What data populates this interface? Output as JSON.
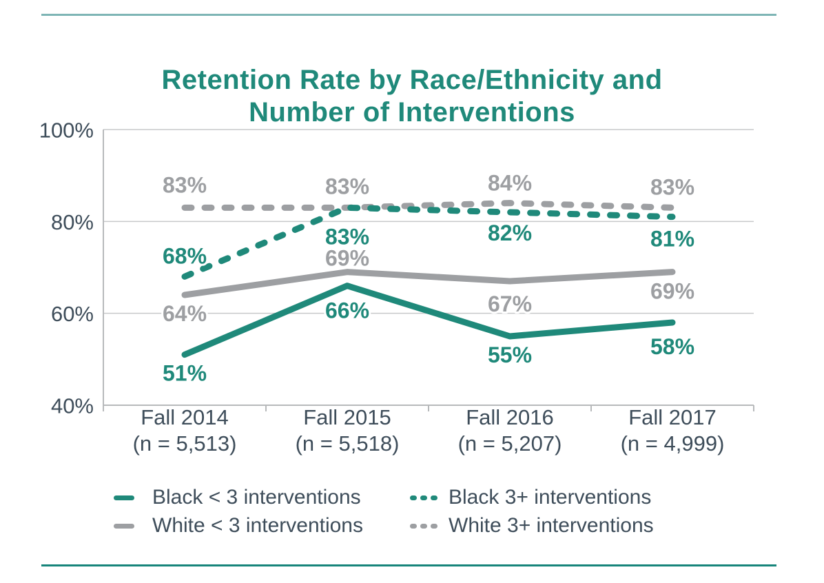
{
  "page": {
    "title_lines": [
      "Retention Rate by Race/Ethnicity and",
      "Number of Interventions"
    ]
  },
  "colors": {
    "teal": "#1F897A",
    "gray": "#9D9FA2",
    "axis_text": "#3E4D5A",
    "gridline": "#C7C9CA",
    "axis_line": "#B7B9BB",
    "title": "#1F897A",
    "top_rule": "#7EB5B5",
    "bottom_rule": "#17857B"
  },
  "chart_data": {
    "type": "line",
    "title": "Retention Rate by Race/Ethnicity and Number of Interventions",
    "xlabel": "",
    "ylabel": "",
    "ylim": [
      40,
      100
    ],
    "grid": true,
    "legend_position": "bottom",
    "y_axis": {
      "ticks": [
        {
          "value": 100,
          "label": "100%"
        },
        {
          "value": 80,
          "label": "80%"
        },
        {
          "value": 60,
          "label": "60%"
        },
        {
          "value": 40,
          "label": "40%"
        }
      ]
    },
    "categories": [
      {
        "label": "Fall 2014",
        "sublabel": "(n = 5,513)"
      },
      {
        "label": "Fall 2015",
        "sublabel": "(n = 5,518)"
      },
      {
        "label": "Fall 2016",
        "sublabel": "(n = 5,207)"
      },
      {
        "label": "Fall 2017",
        "sublabel": "(n = 4,999)"
      }
    ],
    "series": [
      {
        "id": "white-3plus",
        "name": "White 3+ interventions",
        "values": [
          83,
          83,
          84,
          83
        ],
        "labels": [
          "83%",
          "83%",
          "84%",
          "83%"
        ],
        "color": "#9D9FA2",
        "dash": true,
        "label_dy": [
          -33,
          -31,
          -29,
          -30
        ]
      },
      {
        "id": "black-3plus",
        "name": "Black 3+ interventions",
        "values": [
          68,
          83,
          82,
          81
        ],
        "labels": [
          "68%",
          "83%",
          "82%",
          "81%"
        ],
        "color": "#1F897A",
        "dash": true,
        "label_dy": [
          -30,
          42,
          30,
          32
        ]
      },
      {
        "id": "white-lt3",
        "name": "White < 3 interventions",
        "values": [
          64,
          69,
          67,
          69
        ],
        "labels": [
          "64%",
          "69%",
          "67%",
          "69%"
        ],
        "color": "#9D9FA2",
        "dash": false,
        "label_dy": [
          27,
          -20,
          33,
          28
        ]
      },
      {
        "id": "black-lt3",
        "name": "Black < 3 interventions",
        "values": [
          51,
          66,
          55,
          58
        ],
        "labels": [
          "51%",
          "66%",
          "55%",
          "58%"
        ],
        "color": "#1F897A",
        "dash": false,
        "label_dy": [
          27,
          36,
          27,
          35
        ]
      }
    ]
  },
  "legend": {
    "rows": 2,
    "cols": 2
  }
}
